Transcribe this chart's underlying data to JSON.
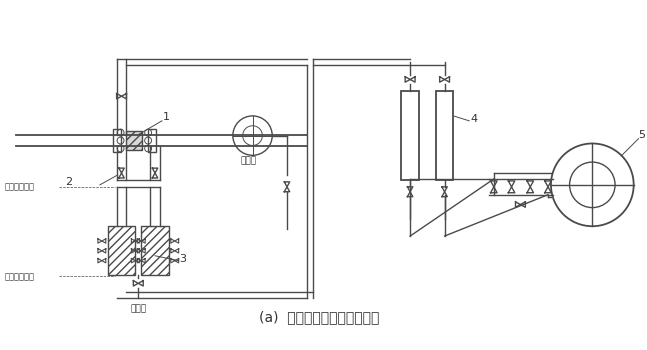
{
  "title": "(a)  差压计装在节流装置下方",
  "title_fontsize": 10,
  "line_color": "#4a4a4a",
  "bg_color": "#ffffff",
  "text_geliyelizongjimian": "隔离液终结面",
  "text_geliyeliqijimian": "隔离液起始面",
  "text_geliye": "隔离液",
  "text_beicheye": "被测液",
  "label_1": "1",
  "label_2": "2",
  "label_3": "3",
  "label_4": "4",
  "label_5": "5"
}
